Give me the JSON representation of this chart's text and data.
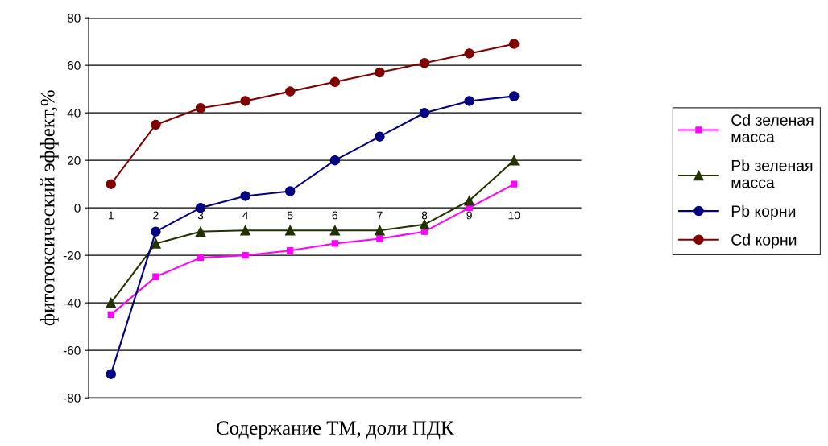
{
  "chart_data": {
    "type": "line",
    "xlabel": "Содержание ТМ, доли ПДК",
    "ylabel": "фитотоксический эффект,%",
    "categories": [
      "1",
      "2",
      "3",
      "4",
      "5",
      "6",
      "7",
      "8",
      "9",
      "10",
      null
    ],
    "ylim": [
      -80,
      80
    ],
    "yticks": [
      -80,
      -60,
      -40,
      -20,
      0,
      20,
      40,
      60,
      80
    ],
    "grid": "y",
    "legend": "right",
    "series": [
      {
        "name": "Cd зеленая масса",
        "color": "#ff00ff",
        "marker": "square",
        "values": [
          -45,
          -29,
          -21,
          -20,
          -18,
          -15,
          -13,
          -10,
          0,
          10,
          null
        ]
      },
      {
        "name": "Pb зеленая масса",
        "color": "#223300",
        "marker": "triangle",
        "values": [
          -40,
          -15,
          -10,
          -9.5,
          -9.5,
          -9.5,
          -9.5,
          -7,
          3,
          20,
          null
        ]
      },
      {
        "name": "Pb корни",
        "color": "#000080",
        "marker": "circle",
        "values": [
          -70,
          -10,
          0,
          5,
          7,
          20,
          30,
          40,
          45,
          47,
          null
        ]
      },
      {
        "name": "Cd корни",
        "color": "#800000",
        "marker": "circle",
        "values": [
          10,
          35,
          42,
          45,
          49,
          53,
          57,
          61,
          65,
          69,
          null
        ]
      }
    ]
  }
}
